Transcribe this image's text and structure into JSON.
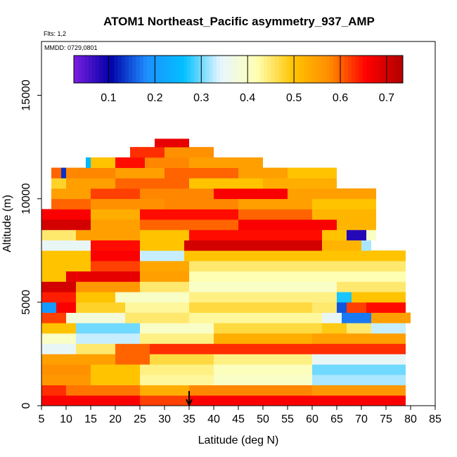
{
  "chart_data": {
    "type": "heatmap",
    "title": "ATOM1 Northeast_Pacific asymmetry_937_AMP",
    "flights_text": "Flts: 1,2",
    "date_text": "MMDD: 0729,0801",
    "xlabel": "Latitude (deg N)",
    "ylabel": "Altitude (m)",
    "xlim": [
      5,
      85
    ],
    "ylim": [
      0,
      17600
    ],
    "x_ticks": [
      "5",
      "10",
      "15",
      "20",
      "25",
      "30",
      "35",
      "40",
      "45",
      "50",
      "55",
      "60",
      "65",
      "70",
      "75",
      "80",
      "85"
    ],
    "y_ticks": [
      "0",
      "5000",
      "10000",
      "15000"
    ],
    "colorbar": {
      "range": [
        0.025,
        0.735
      ],
      "ticks": [
        "0.1",
        "0.2",
        "0.3",
        "0.4",
        "0.5",
        "0.6",
        "0.7"
      ],
      "colors": [
        "#7B1FE0",
        "#0000A8",
        "#1E90FF",
        "#00BFFF",
        "#E6F5FF",
        "#FFFFB3",
        "#FFC400",
        "#FF8C00",
        "#FF0000",
        "#B00000"
      ]
    },
    "marker_latitude": 35,
    "altitude_bands": [
      {
        "alt": [
          0,
          500
        ],
        "segments": [
          [
            5,
            25,
            0.66
          ],
          [
            25,
            35,
            0.62
          ],
          [
            35,
            79,
            0.66
          ]
        ]
      },
      {
        "alt": [
          500,
          1000
        ],
        "segments": [
          [
            5,
            10,
            0.63
          ],
          [
            10,
            25,
            0.59
          ],
          [
            25,
            35,
            0.53
          ],
          [
            35,
            60,
            0.58
          ],
          [
            60,
            79,
            0.56
          ]
        ]
      },
      {
        "alt": [
          1000,
          1500
        ],
        "segments": [
          [
            5,
            15,
            0.56
          ],
          [
            15,
            25,
            0.5
          ],
          [
            25,
            40,
            0.43
          ],
          [
            40,
            60,
            0.4
          ],
          [
            60,
            79,
            0.32
          ]
        ]
      },
      {
        "alt": [
          1500,
          2000
        ],
        "segments": [
          [
            5,
            15,
            0.57
          ],
          [
            15,
            25,
            0.5
          ],
          [
            25,
            40,
            0.44
          ],
          [
            40,
            60,
            0.41
          ],
          [
            60,
            79,
            0.3
          ]
        ]
      },
      {
        "alt": [
          2000,
          2500
        ],
        "segments": [
          [
            5,
            20,
            0.55
          ],
          [
            20,
            27,
            0.6
          ],
          [
            27,
            40,
            0.47
          ],
          [
            40,
            60,
            0.44
          ],
          [
            60,
            79,
            0.35
          ]
        ]
      },
      {
        "alt": [
          2500,
          3000
        ],
        "segments": [
          [
            5,
            12,
            0.35
          ],
          [
            12,
            20,
            0.45
          ],
          [
            20,
            27,
            0.6
          ],
          [
            27,
            79,
            0.63
          ]
        ]
      },
      {
        "alt": [
          3000,
          3500
        ],
        "segments": [
          [
            5,
            12,
            0.4
          ],
          [
            12,
            25,
            0.33
          ],
          [
            25,
            40,
            0.44
          ],
          [
            40,
            60,
            0.53
          ],
          [
            60,
            79,
            0.55
          ]
        ]
      },
      {
        "alt": [
          3500,
          4000
        ],
        "segments": [
          [
            5,
            12,
            0.5
          ],
          [
            12,
            25,
            0.3
          ],
          [
            25,
            40,
            0.4
          ],
          [
            40,
            62,
            0.47
          ],
          [
            62,
            67,
            0.49
          ],
          [
            67,
            72,
            0.45
          ],
          [
            72,
            79,
            0.33
          ]
        ]
      },
      {
        "alt": [
          4000,
          4500
        ],
        "segments": [
          [
            5,
            10,
            0.62
          ],
          [
            10,
            22,
            0.38
          ],
          [
            22,
            35,
            0.45
          ],
          [
            35,
            62,
            0.43
          ],
          [
            62,
            66,
            0.35
          ],
          [
            66,
            72,
            0.17
          ],
          [
            72,
            80,
            0.55
          ]
        ]
      },
      {
        "alt": [
          4500,
          5000
        ],
        "segments": [
          [
            5,
            8,
            0.2
          ],
          [
            8,
            12,
            0.66
          ],
          [
            12,
            22,
            0.48
          ],
          [
            22,
            35,
            0.43
          ],
          [
            35,
            60,
            0.47
          ],
          [
            60,
            65,
            0.45
          ],
          [
            65,
            67,
            0.15
          ],
          [
            67,
            71,
            0.62
          ],
          [
            71,
            79,
            0.65
          ]
        ]
      },
      {
        "alt": [
          5000,
          5500
        ],
        "segments": [
          [
            5,
            12,
            0.64
          ],
          [
            12,
            20,
            0.5
          ],
          [
            20,
            35,
            0.4
          ],
          [
            35,
            65,
            0.44
          ],
          [
            65,
            68,
            0.27
          ],
          [
            68,
            79,
            0.5
          ]
        ]
      },
      {
        "alt": [
          5500,
          6000
        ],
        "segments": [
          [
            5,
            12,
            0.7
          ],
          [
            12,
            25,
            0.56
          ],
          [
            25,
            35,
            0.45
          ],
          [
            35,
            65,
            0.4
          ],
          [
            65,
            79,
            0.45
          ]
        ]
      },
      {
        "alt": [
          6000,
          6500
        ],
        "segments": [
          [
            5,
            10,
            0.5
          ],
          [
            10,
            25,
            0.68
          ],
          [
            25,
            35,
            0.55
          ],
          [
            35,
            79,
            0.42
          ]
        ]
      },
      {
        "alt": [
          6500,
          7000
        ],
        "segments": [
          [
            5,
            15,
            0.5
          ],
          [
            15,
            25,
            0.62
          ],
          [
            25,
            35,
            0.54
          ],
          [
            35,
            79,
            0.45
          ]
        ]
      },
      {
        "alt": [
          7000,
          7500
        ],
        "segments": [
          [
            5,
            15,
            0.5
          ],
          [
            15,
            25,
            0.66
          ],
          [
            25,
            34,
            0.33
          ],
          [
            34,
            79,
            0.5
          ]
        ]
      },
      {
        "alt": [
          7500,
          8000
        ],
        "segments": [
          [
            5,
            15,
            0.35
          ],
          [
            15,
            25,
            0.65
          ],
          [
            25,
            34,
            0.5
          ],
          [
            34,
            62,
            0.7
          ],
          [
            62,
            70,
            0.52
          ],
          [
            70,
            72,
            0.32
          ]
        ]
      },
      {
        "alt": [
          8000,
          8500
        ],
        "segments": [
          [
            5,
            12,
            0.45
          ],
          [
            12,
            25,
            0.55
          ],
          [
            25,
            35,
            0.5
          ],
          [
            35,
            62,
            0.65
          ],
          [
            62,
            67,
            0.5
          ],
          [
            67,
            71,
            0.08
          ],
          [
            71,
            73,
            0.4
          ]
        ]
      },
      {
        "alt": [
          8500,
          9000
        ],
        "segments": [
          [
            5,
            15,
            0.7
          ],
          [
            15,
            25,
            0.55
          ],
          [
            25,
            45,
            0.6
          ],
          [
            45,
            65,
            0.66
          ],
          [
            65,
            73,
            0.52
          ]
        ]
      },
      {
        "alt": [
          9000,
          9500
        ],
        "segments": [
          [
            5,
            15,
            0.66
          ],
          [
            15,
            25,
            0.53
          ],
          [
            25,
            45,
            0.65
          ],
          [
            45,
            60,
            0.6
          ],
          [
            60,
            73,
            0.52
          ]
        ]
      },
      {
        "alt": [
          9500,
          10000
        ],
        "segments": [
          [
            7,
            15,
            0.6
          ],
          [
            15,
            30,
            0.57
          ],
          [
            30,
            45,
            0.58
          ],
          [
            45,
            60,
            0.55
          ],
          [
            60,
            73,
            0.5
          ]
        ]
      },
      {
        "alt": [
          10000,
          10500
        ],
        "segments": [
          [
            7,
            15,
            0.55
          ],
          [
            15,
            25,
            0.62
          ],
          [
            25,
            40,
            0.58
          ],
          [
            40,
            55,
            0.66
          ],
          [
            55,
            73,
            0.55
          ]
        ]
      },
      {
        "alt": [
          10500,
          11000
        ],
        "segments": [
          [
            7,
            10,
            0.48
          ],
          [
            10,
            20,
            0.55
          ],
          [
            20,
            35,
            0.6
          ],
          [
            35,
            50,
            0.5
          ],
          [
            50,
            65,
            0.53
          ]
        ]
      },
      {
        "alt": [
          11000,
          11500
        ],
        "segments": [
          [
            7,
            9,
            0.6
          ],
          [
            9,
            10,
            0.13
          ],
          [
            10,
            20,
            0.58
          ],
          [
            20,
            30,
            0.55
          ],
          [
            30,
            45,
            0.6
          ],
          [
            45,
            55,
            0.55
          ],
          [
            55,
            65,
            0.5
          ]
        ]
      },
      {
        "alt": [
          11500,
          12000
        ],
        "segments": [
          [
            14,
            15,
            0.25
          ],
          [
            15,
            20,
            0.5
          ],
          [
            20,
            26,
            0.65
          ],
          [
            26,
            35,
            0.58
          ],
          [
            35,
            50,
            0.55
          ]
        ]
      },
      {
        "alt": [
          12000,
          12500
        ],
        "segments": [
          [
            23,
            30,
            0.63
          ],
          [
            30,
            40,
            0.57
          ]
        ]
      },
      {
        "alt": [
          12500,
          12900
        ],
        "segments": [
          [
            28,
            35,
            0.68
          ]
        ]
      }
    ]
  }
}
